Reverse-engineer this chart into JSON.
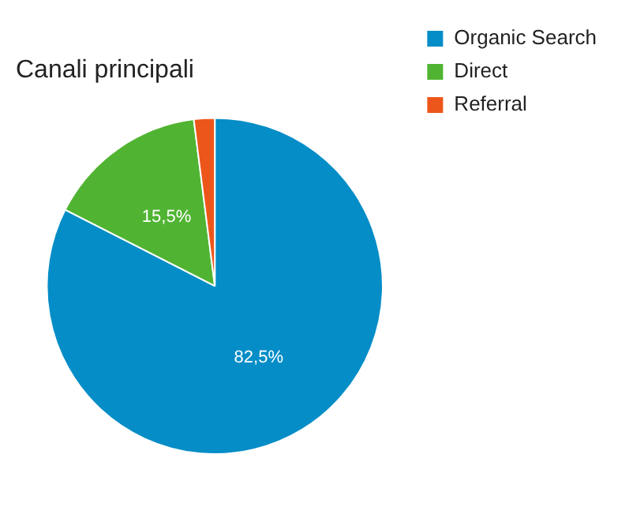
{
  "chart_data": {
    "type": "pie",
    "title": "Canali principali",
    "categories": [
      "Organic Search",
      "Direct",
      "Referral"
    ],
    "values": [
      82.5,
      15.5,
      2.0
    ],
    "colors": [
      "#058dc7",
      "#50b432",
      "#ed561b"
    ],
    "value_labels": [
      "82,5%",
      "15,5%",
      null
    ],
    "legend": "right"
  }
}
